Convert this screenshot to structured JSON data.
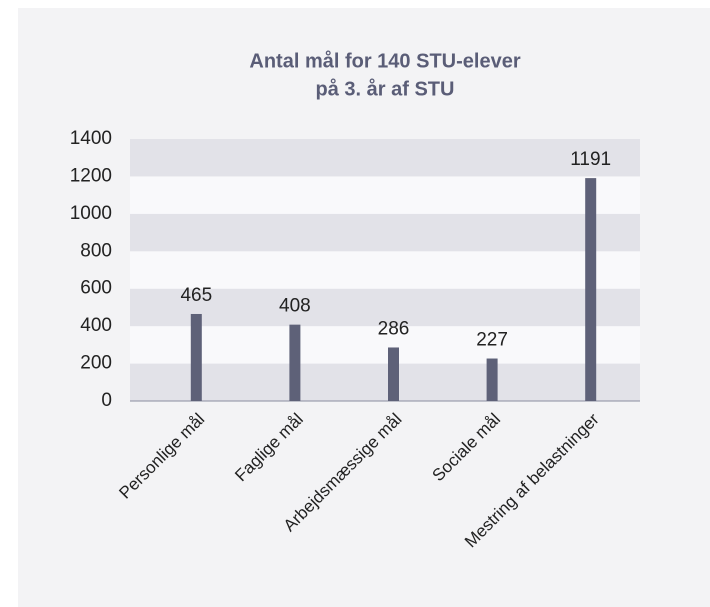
{
  "chart_data": {
    "type": "bar",
    "title": [
      "Antal mål for 140 STU-elever",
      "på 3. år af STU"
    ],
    "categories": [
      "Personlige mål",
      "Faglige mål",
      "Arbejdsmæssige mål",
      "Sociale mål",
      "Mestring af belastninger"
    ],
    "values": [
      465,
      408,
      286,
      227,
      1191
    ],
    "color": "#5e6178",
    "ylim": [
      0,
      1400
    ],
    "yticks": [
      0,
      200,
      400,
      600,
      800,
      1000,
      1200,
      1400
    ],
    "grid": true
  }
}
